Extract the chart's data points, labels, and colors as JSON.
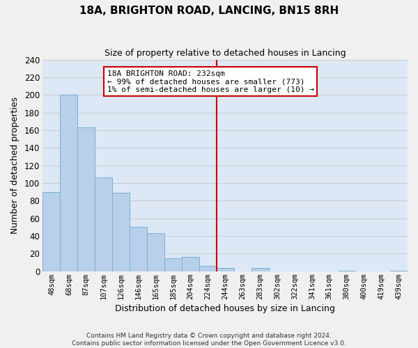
{
  "title": "18A, BRIGHTON ROAD, LANCING, BN15 8RH",
  "subtitle": "Size of property relative to detached houses in Lancing",
  "xlabel": "Distribution of detached houses by size in Lancing",
  "ylabel": "Number of detached properties",
  "bin_labels": [
    "48sqm",
    "68sqm",
    "87sqm",
    "107sqm",
    "126sqm",
    "146sqm",
    "165sqm",
    "185sqm",
    "204sqm",
    "224sqm",
    "244sqm",
    "263sqm",
    "283sqm",
    "302sqm",
    "322sqm",
    "341sqm",
    "361sqm",
    "380sqm",
    "400sqm",
    "419sqm",
    "439sqm"
  ],
  "bar_heights": [
    90,
    200,
    163,
    106,
    89,
    50,
    43,
    15,
    16,
    6,
    4,
    0,
    4,
    0,
    0,
    0,
    0,
    1,
    0,
    0,
    1
  ],
  "bar_color": "#b8d0ea",
  "bar_edge_color": "#7aafd4",
  "vline_x": 9.5,
  "vline_color": "#cc0000",
  "annotation_line1": "18A BRIGHTON ROAD: 232sqm",
  "annotation_line2": "← 99% of detached houses are smaller (773)",
  "annotation_line3": "1% of semi-detached houses are larger (10) →",
  "annotation_box_color": "#ffffff",
  "annotation_box_edge": "#cc0000",
  "ylim": [
    0,
    240
  ],
  "yticks": [
    0,
    20,
    40,
    60,
    80,
    100,
    120,
    140,
    160,
    180,
    200,
    220,
    240
  ],
  "grid_color": "#cccccc",
  "plot_bg_color": "#dce8f5",
  "fig_bg_color": "#f0f0f0",
  "footer_line1": "Contains HM Land Registry data © Crown copyright and database right 2024.",
  "footer_line2": "Contains public sector information licensed under the Open Government Licence v3.0."
}
